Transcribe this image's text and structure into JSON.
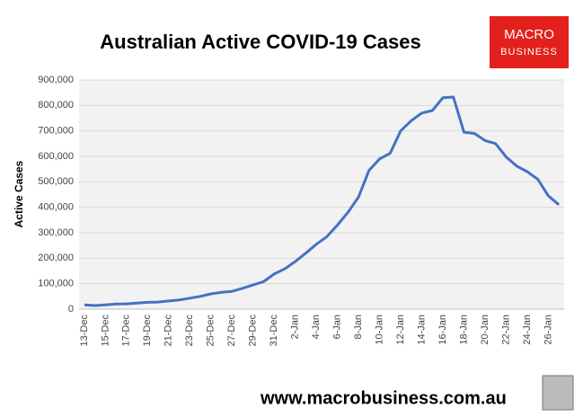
{
  "chart_data": {
    "type": "line",
    "title": "Australian Active COVID-19 Cases",
    "y_label": "Active Cases",
    "categories": [
      "13-Dec",
      null,
      "15-Dec",
      null,
      "17-Dec",
      null,
      "19-Dec",
      null,
      "21-Dec",
      null,
      "23-Dec",
      null,
      "25-Dec",
      null,
      "27-Dec",
      null,
      "29-Dec",
      null,
      "31-Dec",
      null,
      "2-Jan",
      null,
      "4-Jan",
      null,
      "6-Jan",
      null,
      "8-Jan",
      null,
      "10-Jan",
      null,
      "12-Jan",
      null,
      "14-Jan",
      null,
      "16-Jan",
      null,
      "18-Jan",
      null,
      "20-Jan",
      null,
      "22-Jan",
      null,
      "24-Jan",
      null,
      "26-Jan",
      null
    ],
    "series": [
      {
        "name": "Active Cases",
        "color": "#4472c4",
        "values": [
          17000,
          14000,
          17000,
          20000,
          21000,
          24000,
          27000,
          28000,
          32000,
          36000,
          43000,
          50000,
          60000,
          66000,
          70000,
          82000,
          95000,
          108000,
          138000,
          158000,
          187000,
          220000,
          255000,
          285000,
          330000,
          380000,
          440000,
          545000,
          590000,
          612000,
          700000,
          740000,
          770000,
          780000,
          830000,
          833000,
          695000,
          690000,
          662000,
          650000,
          598000,
          562000,
          540000,
          510000,
          445000,
          410000
        ]
      }
    ],
    "ylim": [
      0,
      900000
    ],
    "yticks": [
      0,
      {
        "value": 100000,
        "label": "100,000"
      },
      {
        "value": 200000,
        "label": "200,000"
      },
      {
        "value": 300000,
        "label": "300,000"
      },
      {
        "value": 400000,
        "label": "400,000"
      },
      {
        "value": 500000,
        "label": "500,000"
      },
      {
        "value": 600000,
        "label": "600,000"
      },
      {
        "value": 700000,
        "label": "700,000"
      },
      {
        "value": 800000,
        "label": "800,000"
      },
      {
        "value": 900000,
        "label": "900,000"
      }
    ],
    "grid": true
  },
  "logo": {
    "line1": "MACRO",
    "line2": "BUSINESS"
  },
  "footer": "www.macrobusiness.com.au"
}
